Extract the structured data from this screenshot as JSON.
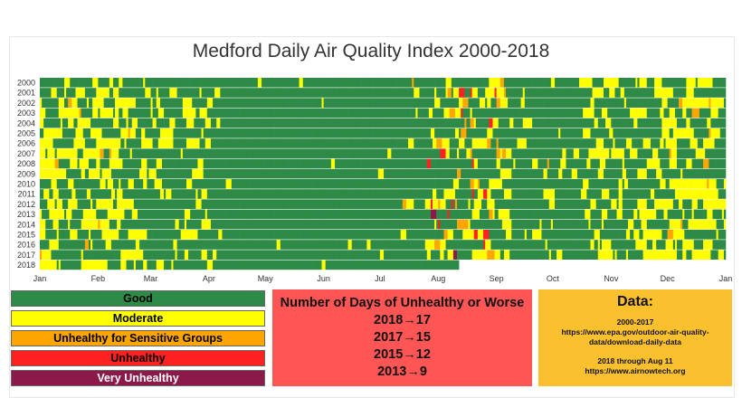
{
  "title": "Medford Daily Air Quality Index 2000-2018",
  "chart_data": {
    "type": "heatmap",
    "title": "Medford Daily Air Quality Index 2000-2018",
    "rows": [
      "2000",
      "2001",
      "2002",
      "2003",
      "2004",
      "2005",
      "2006",
      "2007",
      "2008",
      "2009",
      "2010",
      "2011",
      "2012",
      "2013",
      "2014",
      "2015",
      "2016",
      "2017",
      "2018"
    ],
    "months": [
      "Jan",
      "Feb",
      "Mar",
      "Apr",
      "May",
      "Jun",
      "Jul",
      "Aug",
      "Sep",
      "Oct",
      "Nov",
      "Dec",
      "Jan"
    ],
    "categories": [
      "Good",
      "Moderate",
      "Unhealthy for Sensitive Groups",
      "Unhealthy",
      "Very Unhealthy"
    ],
    "colors": {
      "Good": "#2e8b47",
      "Moderate": "#ffff00",
      "Unhealthy for Sensitive Groups": "#ffa500",
      "Unhealthy": "#ff2020",
      "Very Unhealthy": "#8b1a4a",
      "NoData": "#ffffff"
    },
    "unhealthy_or_worse_days": [
      {
        "year": "2018",
        "days": 17
      },
      {
        "year": "2017",
        "days": 15
      },
      {
        "year": "2015",
        "days": 12
      },
      {
        "year": "2013",
        "days": 9
      }
    ],
    "last_day_2018": "Aug 11"
  },
  "legend": [
    {
      "label": "Good",
      "color": "#2e8b47"
    },
    {
      "label": "Moderate",
      "color": "#ffff00"
    },
    {
      "label": "Unhealthy for Sensitive Groups",
      "color": "#ffa500"
    },
    {
      "label": "Unhealthy",
      "color": "#ff2020"
    },
    {
      "label": "Very Unhealthy",
      "color": "#8b1a4a"
    }
  ],
  "days_box": {
    "title": "Number of Days of Unhealthy or Worse",
    "lines": [
      "2018→17",
      "2017→15",
      "2015→12",
      "2013→9"
    ]
  },
  "data_box": {
    "title": "Data:",
    "line1": "2000-2017",
    "line2": "https://www.epa.gov/outdoor-air-quality-",
    "line3": "data/download-daily-data",
    "line4": "2018 through Aug 11",
    "line5": "https://www.airnowtech.org"
  }
}
